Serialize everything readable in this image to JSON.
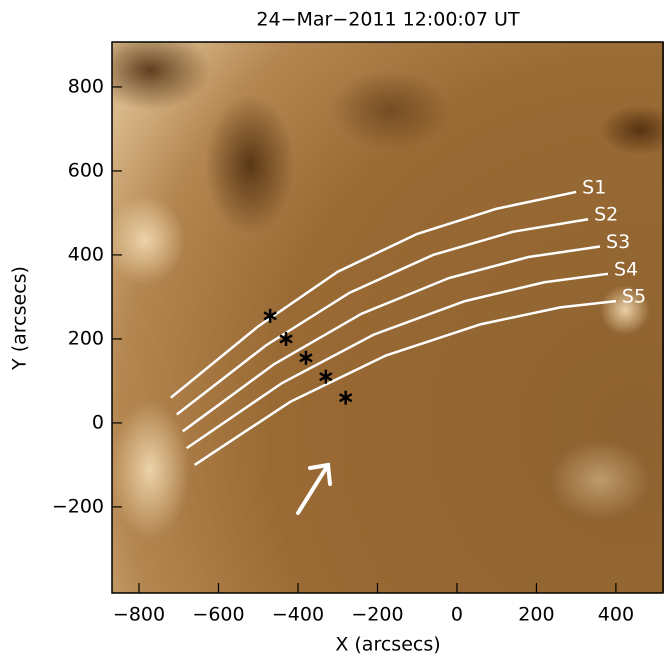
{
  "chart_data": {
    "type": "image",
    "title": "24−Mar−2011  12:00:07  UT",
    "xlabel": "X (arcsecs)",
    "ylabel": "Y (arcsecs)",
    "xlim": [
      -868,
      521
    ],
    "ylim": [
      -405,
      907
    ],
    "xticks": [
      {
        "value": -800,
        "label": "−800"
      },
      {
        "value": -600,
        "label": "−600"
      },
      {
        "value": -400,
        "label": "−400"
      },
      {
        "value": -200,
        "label": "−200"
      },
      0,
      200,
      400
    ],
    "yticks": [
      {
        "value": -200,
        "label": "−200"
      },
      0,
      200,
      400,
      600,
      800
    ],
    "series": [
      {
        "name": "S1",
        "color": "#ffffff",
        "x": [
          -720,
          -500,
          -300,
          -100,
          100,
          300
        ],
        "values": [
          60,
          230,
          360,
          450,
          510,
          550
        ]
      },
      {
        "name": "S2",
        "color": "#ffffff",
        "x": [
          -705,
          -480,
          -270,
          -60,
          140,
          330
        ],
        "values": [
          20,
          185,
          310,
          400,
          455,
          485
        ]
      },
      {
        "name": "S3",
        "color": "#ffffff",
        "x": [
          -690,
          -460,
          -240,
          -20,
          180,
          360
        ],
        "values": [
          -20,
          140,
          260,
          345,
          395,
          420
        ]
      },
      {
        "name": "S4",
        "color": "#ffffff",
        "x": [
          -680,
          -440,
          -210,
          20,
          220,
          380
        ],
        "values": [
          -60,
          95,
          210,
          290,
          335,
          355
        ]
      },
      {
        "name": "S5",
        "color": "#ffffff",
        "x": [
          -660,
          -420,
          -180,
          60,
          260,
          400
        ],
        "values": [
          -100,
          50,
          160,
          235,
          275,
          290
        ]
      }
    ],
    "markers": {
      "color": "#000000",
      "x": [
        -470,
        -430,
        -380,
        -330,
        -280
      ],
      "values": [
        255,
        200,
        155,
        110,
        60
      ]
    }
  }
}
